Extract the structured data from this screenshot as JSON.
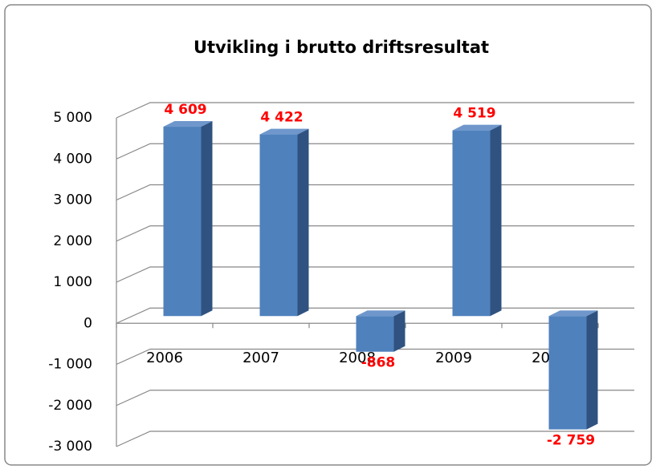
{
  "chart_data": {
    "type": "bar3d",
    "title": "Utvikling i brutto driftsresultat",
    "categories": [
      "2006",
      "2007",
      "2008",
      "2009",
      "2010"
    ],
    "values": [
      4609,
      4422,
      -868,
      4519,
      -2759
    ],
    "value_labels": [
      "4 609",
      "4 422",
      "-868",
      "4 519",
      "-2 759"
    ],
    "color": "#4f81bd",
    "ylim": [
      -3000,
      5000
    ],
    "yticks": [
      {
        "value": -3000,
        "label": "-3 000"
      },
      {
        "value": -2000,
        "label": "-2 000"
      },
      {
        "value": -1000,
        "label": "-1 000"
      },
      0,
      {
        "value": 1000,
        "label": "1 000"
      },
      {
        "value": 2000,
        "label": "2 000"
      },
      {
        "value": 3000,
        "label": "3 000"
      },
      {
        "value": 4000,
        "label": "4 000"
      },
      {
        "value": 5000,
        "label": "5 000"
      }
    ],
    "grid": true
  }
}
